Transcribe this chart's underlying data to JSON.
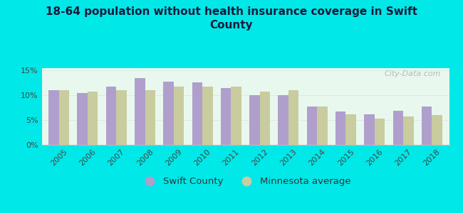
{
  "title": "18-64 population without health insurance coverage in Swift\nCounty",
  "years": [
    2005,
    2006,
    2007,
    2008,
    2009,
    2010,
    2011,
    2012,
    2013,
    2014,
    2015,
    2016,
    2017,
    2018
  ],
  "swift_county": [
    11.0,
    10.5,
    11.8,
    13.5,
    12.8,
    12.7,
    11.5,
    10.0,
    10.0,
    7.8,
    6.8,
    6.2,
    6.9,
    7.8
  ],
  "mn_average": [
    11.0,
    10.7,
    11.0,
    11.0,
    11.8,
    11.8,
    11.8,
    10.7,
    11.0,
    7.8,
    6.1,
    5.3,
    5.8,
    6.0
  ],
  "swift_color": "#b09fcc",
  "mn_color": "#c8cc9f",
  "background_outer": "#00e8e8",
  "background_inner_top": "#d8f0e8",
  "background_inner_bottom": "#f5fdf5",
  "ylim": [
    0,
    15
  ],
  "yticks": [
    0,
    5,
    10,
    15
  ],
  "ytick_labels": [
    "0%",
    "5%",
    "10%",
    "15%"
  ],
  "bar_width": 0.36,
  "legend_swift": "Swift County",
  "legend_mn": "Minnesota average",
  "watermark": "City-Data.com",
  "title_fontsize": 11,
  "tick_fontsize": 8,
  "title_color": "#1a1a3a"
}
